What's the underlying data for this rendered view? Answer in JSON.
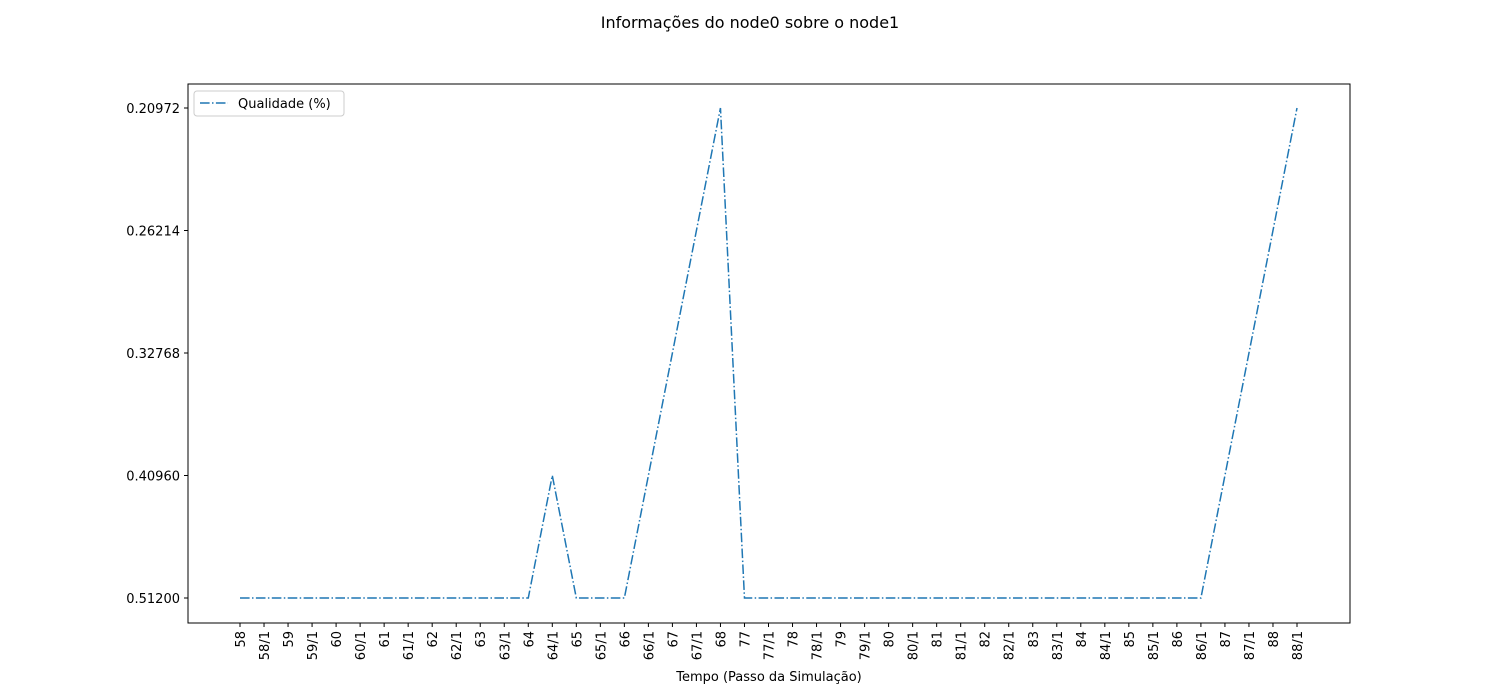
{
  "chart_data": {
    "type": "line",
    "title": "Informações do node0 sobre o node1",
    "x_label": "Tempo (Passo da Simulação)",
    "y_scale": "categorical",
    "categories": [
      "58",
      "58/1",
      "59",
      "59/1",
      "60",
      "60/1",
      "61",
      "61/1",
      "62",
      "62/1",
      "63",
      "63/1",
      "64",
      "64/1",
      "65",
      "65/1",
      "66",
      "66/1",
      "67",
      "67/1",
      "68",
      "77",
      "77/1",
      "78",
      "78/1",
      "79",
      "79/1",
      "80",
      "80/1",
      "81",
      "81/1",
      "82",
      "82/1",
      "83",
      "83/1",
      "84",
      "84/1",
      "85",
      "85/1",
      "86",
      "86/1",
      "87",
      "87/1",
      "88",
      "88/1"
    ],
    "yticks": [
      {
        "value": 0.512,
        "label": "0.51200"
      },
      {
        "value": 0.4096,
        "label": "0.40960"
      },
      {
        "value": 0.32768,
        "label": "0.32768"
      },
      {
        "value": 0.26214,
        "label": "0.26214"
      },
      {
        "value": 0.20972,
        "label": "0.20972"
      }
    ],
    "series": [
      {
        "name": "Qualidade (%)",
        "color": "#1f77b4",
        "line_style": "dashdot",
        "values": [
          0.512,
          0.512,
          0.512,
          0.512,
          0.512,
          0.512,
          0.512,
          0.512,
          0.512,
          0.512,
          0.512,
          0.512,
          0.512,
          0.4096,
          0.512,
          0.512,
          0.512,
          0.4096,
          0.32768,
          0.26214,
          0.20972,
          0.512,
          0.512,
          0.512,
          0.512,
          0.512,
          0.512,
          0.512,
          0.512,
          0.512,
          0.512,
          0.512,
          0.512,
          0.512,
          0.512,
          0.512,
          0.512,
          0.512,
          0.512,
          0.512,
          0.512,
          0.4096,
          0.32768,
          0.26214,
          0.20972
        ]
      }
    ],
    "legend": "upper left"
  }
}
